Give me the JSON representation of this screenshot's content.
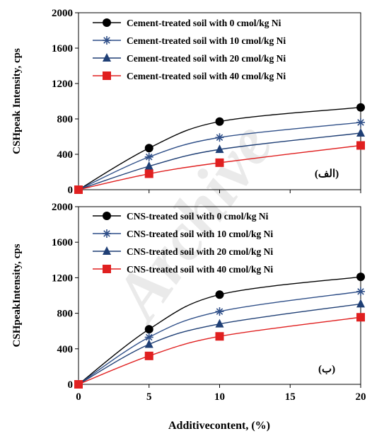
{
  "colors": {
    "s0": "#000000",
    "s10": "#2f4f88",
    "s20": "#1f3f75",
    "s40": "#e02020"
  },
  "watermark": "Archive",
  "xlabel": "Additivecontent, (%)",
  "chart_data": [
    {
      "type": "line",
      "panel_tag": "(الف)",
      "ylabel": "CSHpeak Intensity, cps",
      "ylim": [
        0,
        2000
      ],
      "yticks": [
        0,
        400,
        800,
        1200,
        1600,
        2000
      ],
      "xlim": [
        0,
        20
      ],
      "xticks": [],
      "x": [
        0,
        5,
        10,
        20
      ],
      "legend_position": "top",
      "series": [
        {
          "name": "Cement-treated soil with 0 cmol/kg Ni",
          "marker": "circle",
          "color_key": "s0",
          "values": [
            0,
            470,
            770,
            930
          ]
        },
        {
          "name": "Cement-treated soil with 10 cmol/kg Ni",
          "marker": "star",
          "color_key": "s10",
          "values": [
            0,
            370,
            590,
            760
          ]
        },
        {
          "name": "Cement-treated soil with 20 cmol/kg Ni",
          "marker": "triangle",
          "color_key": "s20",
          "values": [
            0,
            265,
            455,
            640
          ]
        },
        {
          "name": "Cement-treated soil with 40 cmol/kg Ni",
          "marker": "square",
          "color_key": "s40",
          "values": [
            0,
            180,
            305,
            500
          ]
        }
      ]
    },
    {
      "type": "line",
      "panel_tag": "(ب)",
      "ylabel": "CSHpeakIntensity, cps",
      "ylim": [
        0,
        2000
      ],
      "yticks": [
        0,
        400,
        800,
        1200,
        1600,
        2000
      ],
      "xlim": [
        0,
        20
      ],
      "xticks": [
        0,
        5,
        10,
        15,
        20
      ],
      "x": [
        0,
        5,
        10,
        20
      ],
      "legend_position": "top",
      "series": [
        {
          "name": "CNS-treated soil with 0 cmol/kg Ni",
          "marker": "circle",
          "color_key": "s0",
          "values": [
            0,
            620,
            1010,
            1210
          ]
        },
        {
          "name": "CNS-treated soil with 10 cmol/kg Ni",
          "marker": "star",
          "color_key": "s10",
          "values": [
            0,
            530,
            820,
            1045
          ]
        },
        {
          "name": "CNS-treated soil with 20 cmol/kg Ni",
          "marker": "triangle",
          "color_key": "s20",
          "values": [
            0,
            450,
            680,
            905
          ]
        },
        {
          "name": "CNS-treated soil with 40 cmol/kg Ni",
          "marker": "square",
          "color_key": "s40",
          "values": [
            0,
            320,
            540,
            755
          ]
        }
      ]
    }
  ]
}
